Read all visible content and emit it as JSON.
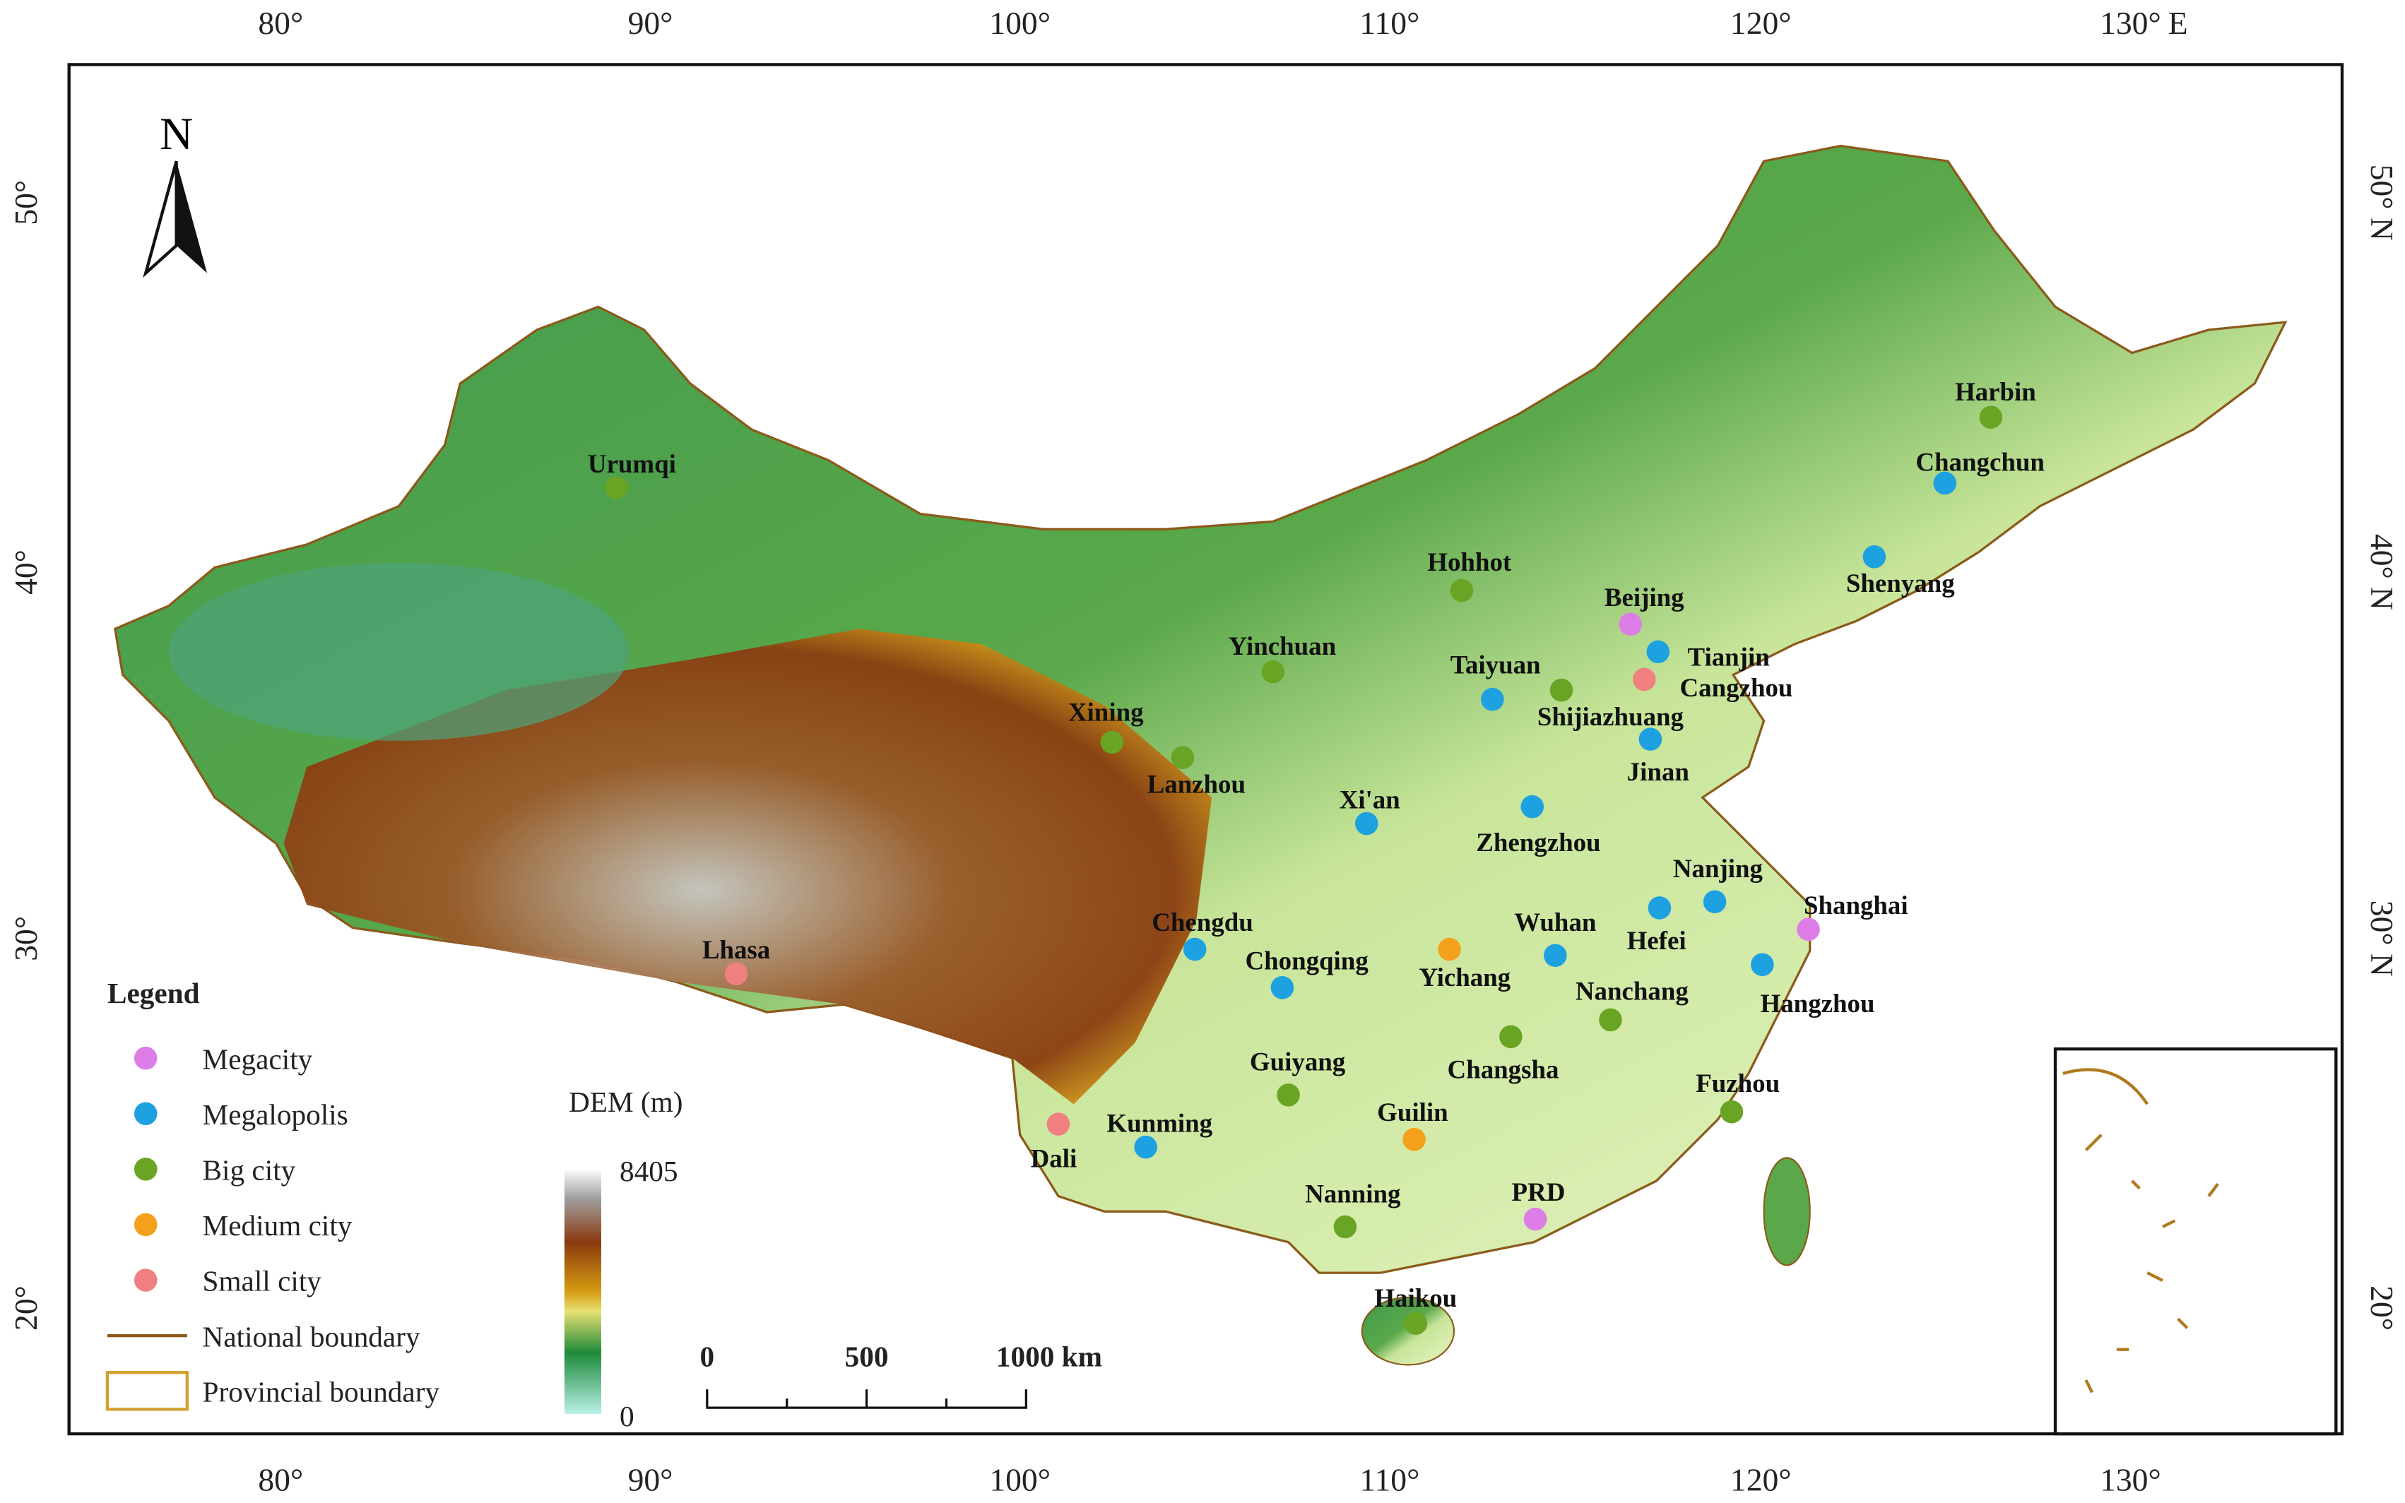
{
  "map": {
    "north": "N",
    "graticule": {
      "top": [
        "80°",
        "90°",
        "100°",
        "110°",
        "120°",
        "130°"
      ],
      "top_unit": "E",
      "bottom": [
        "80°",
        "90°",
        "100°",
        "110°",
        "120°",
        "130°"
      ],
      "left": [
        "50°",
        "40°",
        "30°",
        "20°"
      ],
      "right": [
        "50° N",
        "40° N",
        "30° N",
        "20°"
      ]
    },
    "legend": {
      "title": "Legend",
      "classes": [
        {
          "label": "Megacity",
          "color": "#dd7ee8"
        },
        {
          "label": "Megalopolis",
          "color": "#1da1e0"
        },
        {
          "label": "Big city",
          "color": "#6aa424"
        },
        {
          "label": "Medium city",
          "color": "#f5a01a"
        },
        {
          "label": "Small city",
          "color": "#f08080"
        }
      ],
      "national_boundary": "National boundary",
      "provincial_boundary": "Provincial boundary"
    },
    "dem": {
      "title": "DEM (m)",
      "max": 8405,
      "min": 0
    },
    "scale_bar": [
      "0",
      "500",
      "1000 km"
    ],
    "cities": [
      {
        "name": "Urumqi",
        "class": "Big city"
      },
      {
        "name": "Hohhot",
        "class": "Big city"
      },
      {
        "name": "Beijing",
        "class": "Megacity"
      },
      {
        "name": "Tianjin",
        "class": "Megalopolis"
      },
      {
        "name": "Cangzhou",
        "class": "Small city"
      },
      {
        "name": "Yinchuan",
        "class": "Big city"
      },
      {
        "name": "Taiyuan",
        "class": "Megalopolis"
      },
      {
        "name": "Shijiazhuang",
        "class": "Big city"
      },
      {
        "name": "Xining",
        "class": "Big city"
      },
      {
        "name": "Lanzhou",
        "class": "Big city"
      },
      {
        "name": "Jinan",
        "class": "Megalopolis"
      },
      {
        "name": "Xi'an",
        "class": "Megalopolis"
      },
      {
        "name": "Zhengzhou",
        "class": "Megalopolis"
      },
      {
        "name": "Nanjing",
        "class": "Megalopolis"
      },
      {
        "name": "Shanghai",
        "class": "Megacity"
      },
      {
        "name": "Hefei",
        "class": "Megalopolis"
      },
      {
        "name": "Wuhan",
        "class": "Megalopolis"
      },
      {
        "name": "Chengdu",
        "class": "Megalopolis"
      },
      {
        "name": "Chongqing",
        "class": "Megalopolis"
      },
      {
        "name": "Yichang",
        "class": "Medium city"
      },
      {
        "name": "Lhasa",
        "class": "Small city"
      },
      {
        "name": "Hangzhou",
        "class": "Megalopolis"
      },
      {
        "name": "Nanchang",
        "class": "Big city"
      },
      {
        "name": "Changsha",
        "class": "Big city"
      },
      {
        "name": "Guiyang",
        "class": "Big city"
      },
      {
        "name": "Fuzhou",
        "class": "Big city"
      },
      {
        "name": "Guilin",
        "class": "Medium city"
      },
      {
        "name": "Dali",
        "class": "Small city"
      },
      {
        "name": "Kunming",
        "class": "Megalopolis"
      },
      {
        "name": "Nanning",
        "class": "Big city"
      },
      {
        "name": "PRD",
        "class": "Megacity"
      },
      {
        "name": "Haikou",
        "class": "Big city"
      },
      {
        "name": "Harbin",
        "class": "Big city"
      },
      {
        "name": "Changchun",
        "class": "Megalopolis"
      },
      {
        "name": "Shenyang",
        "class": "Megalopolis"
      }
    ]
  }
}
